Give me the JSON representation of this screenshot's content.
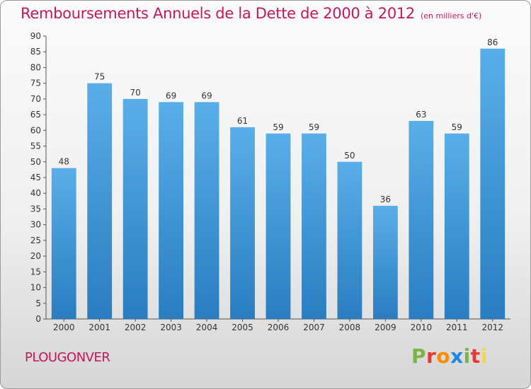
{
  "header": {
    "title": "Remboursements Annuels de la Dette de 2000 à 2012",
    "subtitle": "(en milliers d'€)"
  },
  "footer": {
    "city": "PLOUGONVER",
    "brand": "Proxiti"
  },
  "colors": {
    "bar_light": "#5aaee8",
    "bar_dark": "#2a7dc0",
    "title": "#c2185b",
    "brand_letters": [
      "#7cb342",
      "#e53935",
      "#fb8c00",
      "#1e88e5",
      "#7cb342",
      "#e53935",
      "#fdd835"
    ]
  },
  "chart_data": {
    "type": "bar",
    "title": "Remboursements Annuels de la Dette de 2000 à 2012",
    "subtitle": "(en milliers d'€)",
    "categories": [
      "2000",
      "2001",
      "2002",
      "2003",
      "2004",
      "2005",
      "2006",
      "2007",
      "2008",
      "2009",
      "2010",
      "2011",
      "2012"
    ],
    "values": [
      48,
      75,
      70,
      69,
      69,
      61,
      59,
      59,
      50,
      36,
      63,
      59,
      86
    ],
    "ylim": [
      0,
      90
    ],
    "ytick_step": 5,
    "grid": false
  }
}
